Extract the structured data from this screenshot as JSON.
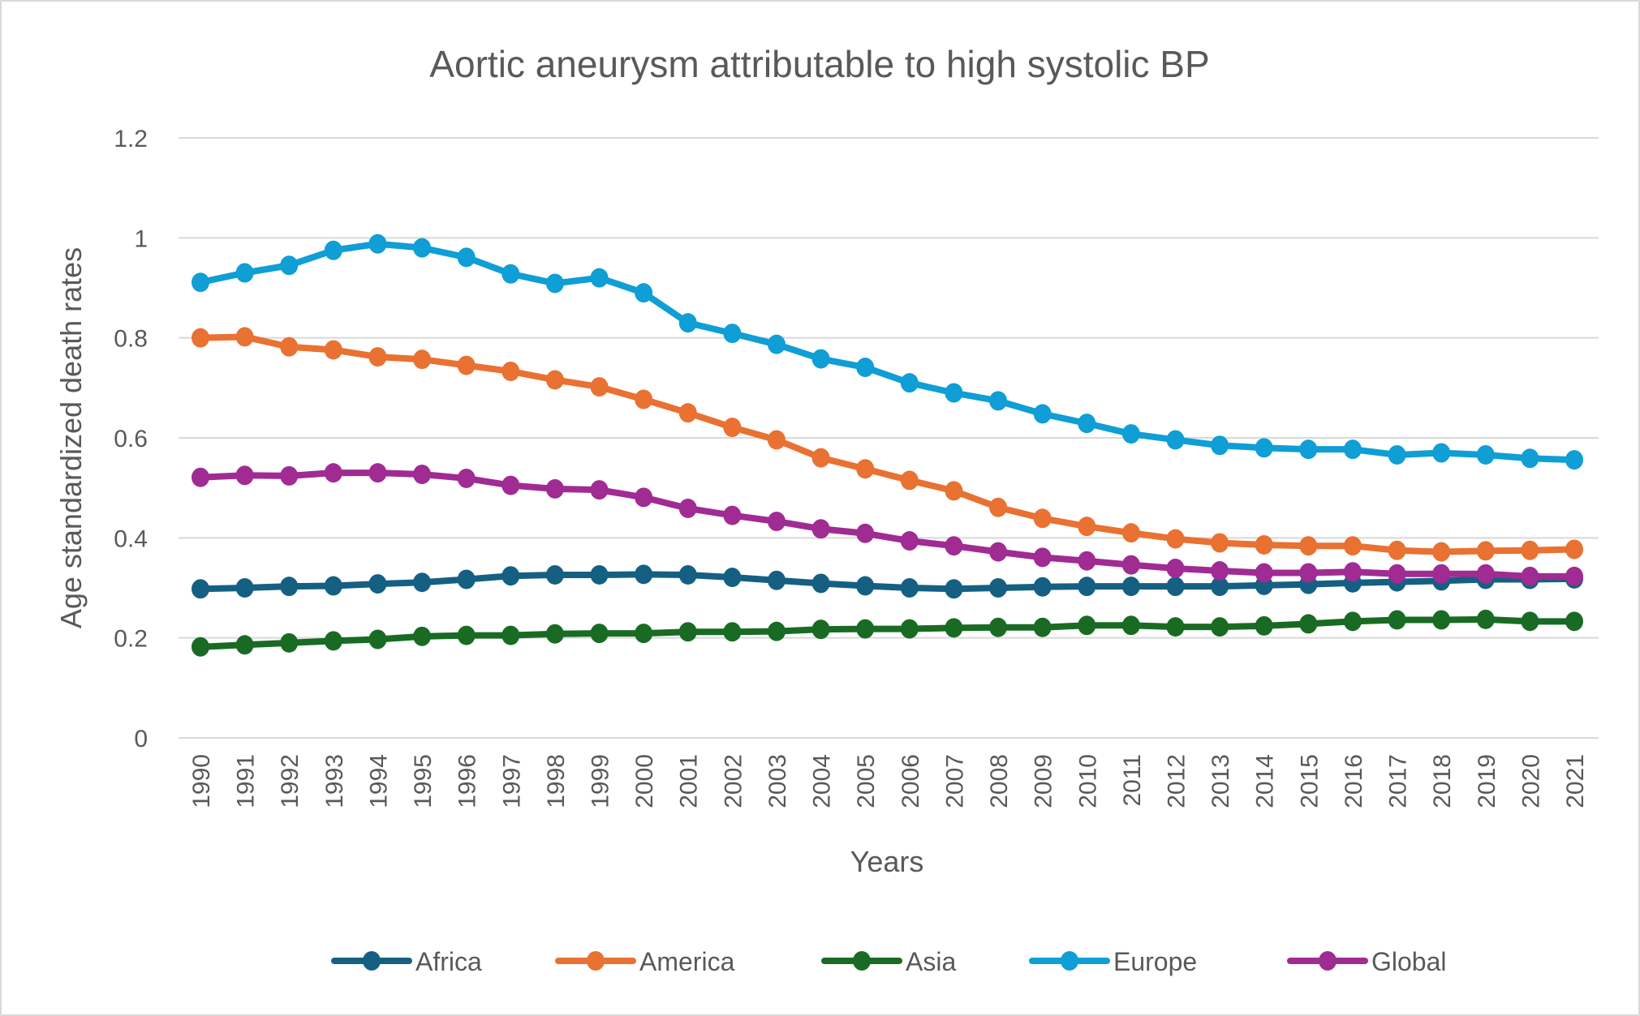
{
  "chart_data": {
    "type": "line",
    "title": "Aortic aneurysm attributable to high systolic BP",
    "xlabel": "Years",
    "ylabel": "Age standardized death rates",
    "ylim": [
      0,
      1.2
    ],
    "yticks": [
      "0",
      "0.2",
      "0.4",
      "0.6",
      "0.8",
      "1",
      "1.2"
    ],
    "ytick_values": [
      0,
      0.2,
      0.4,
      0.6,
      0.8,
      1.0,
      1.2
    ],
    "grid": true,
    "legend_position": "bottom",
    "x": [
      "1990",
      "1991",
      "1992",
      "1993",
      "1994",
      "1995",
      "1996",
      "1997",
      "1998",
      "1999",
      "2000",
      "2001",
      "2002",
      "2003",
      "2004",
      "2005",
      "2006",
      "2007",
      "2008",
      "2009",
      "2010",
      "2011",
      "2012",
      "2013",
      "2014",
      "2015",
      "2016",
      "2017",
      "2018",
      "2019",
      "2020",
      "2021"
    ],
    "series": [
      {
        "name": "Africa",
        "color": "#156082",
        "values": [
          0.298,
          0.3,
          0.303,
          0.304,
          0.308,
          0.311,
          0.317,
          0.324,
          0.326,
          0.326,
          0.327,
          0.326,
          0.321,
          0.315,
          0.309,
          0.304,
          0.3,
          0.298,
          0.3,
          0.302,
          0.303,
          0.303,
          0.303,
          0.303,
          0.305,
          0.307,
          0.31,
          0.312,
          0.314,
          0.317,
          0.317,
          0.318
        ]
      },
      {
        "name": "America",
        "color": "#E97132",
        "values": [
          0.8,
          0.802,
          0.782,
          0.776,
          0.762,
          0.757,
          0.745,
          0.733,
          0.716,
          0.702,
          0.677,
          0.65,
          0.621,
          0.596,
          0.56,
          0.538,
          0.515,
          0.494,
          0.461,
          0.439,
          0.423,
          0.41,
          0.398,
          0.39,
          0.386,
          0.384,
          0.384,
          0.375,
          0.372,
          0.374,
          0.375,
          0.377
        ]
      },
      {
        "name": "Asia",
        "color": "#196B24",
        "values": [
          0.182,
          0.186,
          0.19,
          0.194,
          0.197,
          0.203,
          0.205,
          0.205,
          0.208,
          0.209,
          0.209,
          0.212,
          0.212,
          0.213,
          0.217,
          0.218,
          0.218,
          0.22,
          0.221,
          0.221,
          0.225,
          0.225,
          0.222,
          0.222,
          0.224,
          0.228,
          0.233,
          0.236,
          0.236,
          0.237,
          0.233,
          0.233
        ]
      },
      {
        "name": "Europe",
        "color": "#0F9ED5",
        "values": [
          0.911,
          0.93,
          0.945,
          0.975,
          0.988,
          0.98,
          0.961,
          0.928,
          0.909,
          0.92,
          0.89,
          0.83,
          0.809,
          0.787,
          0.758,
          0.741,
          0.71,
          0.69,
          0.674,
          0.648,
          0.629,
          0.608,
          0.596,
          0.585,
          0.58,
          0.577,
          0.577,
          0.566,
          0.57,
          0.566,
          0.559,
          0.556
        ]
      },
      {
        "name": "Global",
        "color": "#A02B93",
        "values": [
          0.521,
          0.525,
          0.524,
          0.53,
          0.53,
          0.527,
          0.519,
          0.505,
          0.498,
          0.496,
          0.481,
          0.459,
          0.445,
          0.433,
          0.418,
          0.409,
          0.394,
          0.384,
          0.372,
          0.361,
          0.354,
          0.346,
          0.339,
          0.334,
          0.33,
          0.33,
          0.332,
          0.328,
          0.328,
          0.328,
          0.323,
          0.323
        ]
      }
    ]
  }
}
